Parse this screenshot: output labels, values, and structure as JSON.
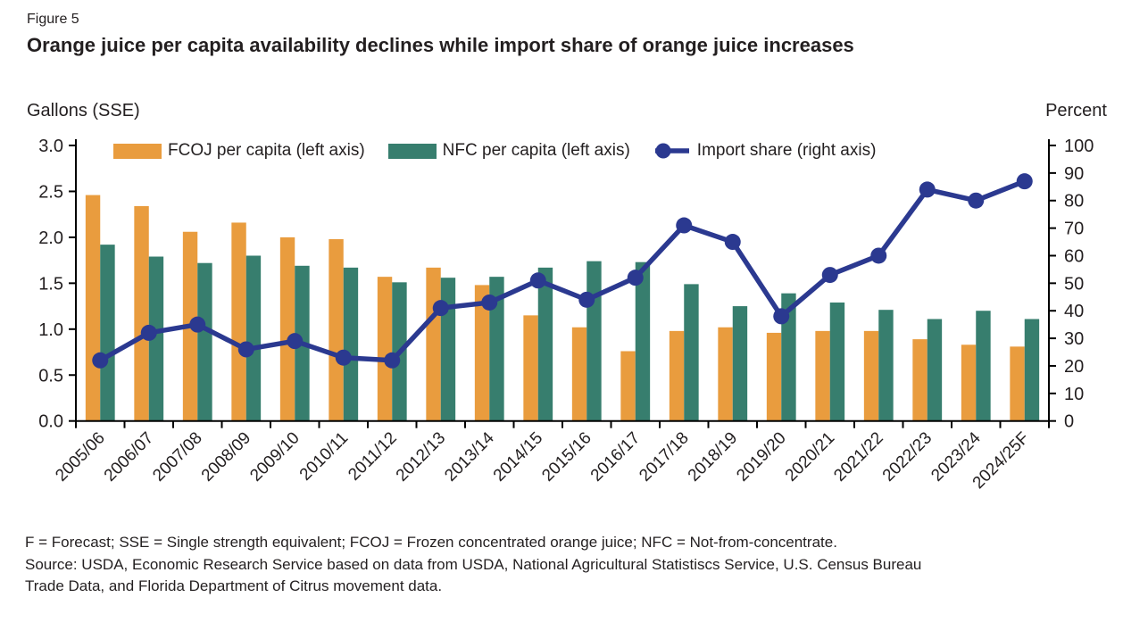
{
  "figure": {
    "label": "Figure 5",
    "title": "Orange juice per capita availability declines while import share of orange juice increases"
  },
  "axes": {
    "left_unit": "Gallons (SSE)",
    "right_unit": "Percent"
  },
  "legend": [
    {
      "label": "FCOJ per capita (left axis)",
      "swatch": "bar",
      "color": "#E99C3E"
    },
    {
      "label": "NFC per capita (left axis)",
      "swatch": "bar",
      "color": "#377E6E"
    },
    {
      "label": "Import share (right axis)",
      "swatch": "line-dot",
      "color": "#2B3990"
    }
  ],
  "chart_data": {
    "type": "bar+line",
    "title": "Orange juice per capita availability declines while import share of orange juice increases",
    "categories": [
      "2005/06",
      "2006/07",
      "2007/08",
      "2008/09",
      "2009/10",
      "2010/11",
      "2011/12",
      "2012/13",
      "2013/14",
      "2014/15",
      "2015/16",
      "2016/17",
      "2017/18",
      "2018/19",
      "2019/20",
      "2020/21",
      "2021/22",
      "2022/23",
      "2023/24",
      "2024/25F"
    ],
    "series": [
      {
        "name": "FCOJ per capita (left axis)",
        "type": "bar",
        "axis": "left",
        "color": "#E99C3E",
        "values": [
          2.46,
          2.34,
          2.06,
          2.16,
          2.0,
          1.98,
          1.57,
          1.67,
          1.48,
          1.15,
          1.02,
          0.76,
          0.98,
          1.02,
          0.96,
          0.98,
          0.98,
          0.89,
          0.83,
          0.81
        ]
      },
      {
        "name": "NFC per capita (left axis)",
        "type": "bar",
        "axis": "left",
        "color": "#377E6E",
        "values": [
          1.92,
          1.79,
          1.72,
          1.8,
          1.69,
          1.67,
          1.51,
          1.56,
          1.57,
          1.67,
          1.74,
          1.73,
          1.49,
          1.25,
          1.39,
          1.29,
          1.21,
          1.11,
          1.2,
          1.11
        ]
      },
      {
        "name": "Import share (right axis)",
        "type": "line",
        "axis": "right",
        "color": "#2B3990",
        "values": [
          22,
          32,
          35,
          26,
          29,
          23,
          22,
          41,
          43,
          51,
          44,
          52,
          71,
          65,
          38,
          53,
          60,
          84,
          80,
          87
        ]
      }
    ],
    "left_axis": {
      "label": "Gallons (SSE)",
      "min": 0,
      "max": 3.0,
      "tick_labels": [
        "0.0",
        "0.5",
        "1.0",
        "1.5",
        "2.0",
        "2.5",
        "3.0"
      ]
    },
    "right_axis": {
      "label": "Percent",
      "min": 0,
      "max": 100,
      "tick_labels": [
        "0",
        "10",
        "20",
        "30",
        "40",
        "50",
        "60",
        "70",
        "80",
        "90",
        "100"
      ]
    },
    "grid": "off",
    "legend_position": "top"
  },
  "notes": {
    "definitions": "F = Forecast; SSE = Single strength equivalent; FCOJ = Frozen concentrated orange juice; NFC = Not-from-concentrate.",
    "source": "Source: USDA, Economic Research Service based on data from USDA, National Agricultural Statistiscs Service, U.S. Census Bureau Trade Data, and Florida Department of Citrus movement data."
  }
}
